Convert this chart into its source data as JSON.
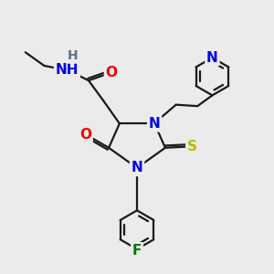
{
  "bg_color": "#ebebeb",
  "bond_color": "#1a1a1a",
  "atom_colors": {
    "N": "#0000ee",
    "O": "#ee0000",
    "S": "#bbbb00",
    "F": "#007700",
    "H": "#607080",
    "C": "#1a1a1a"
  },
  "font_size_atom": 11,
  "line_width": 1.6,
  "figsize": [
    3.0,
    3.0
  ],
  "dpi": 100
}
